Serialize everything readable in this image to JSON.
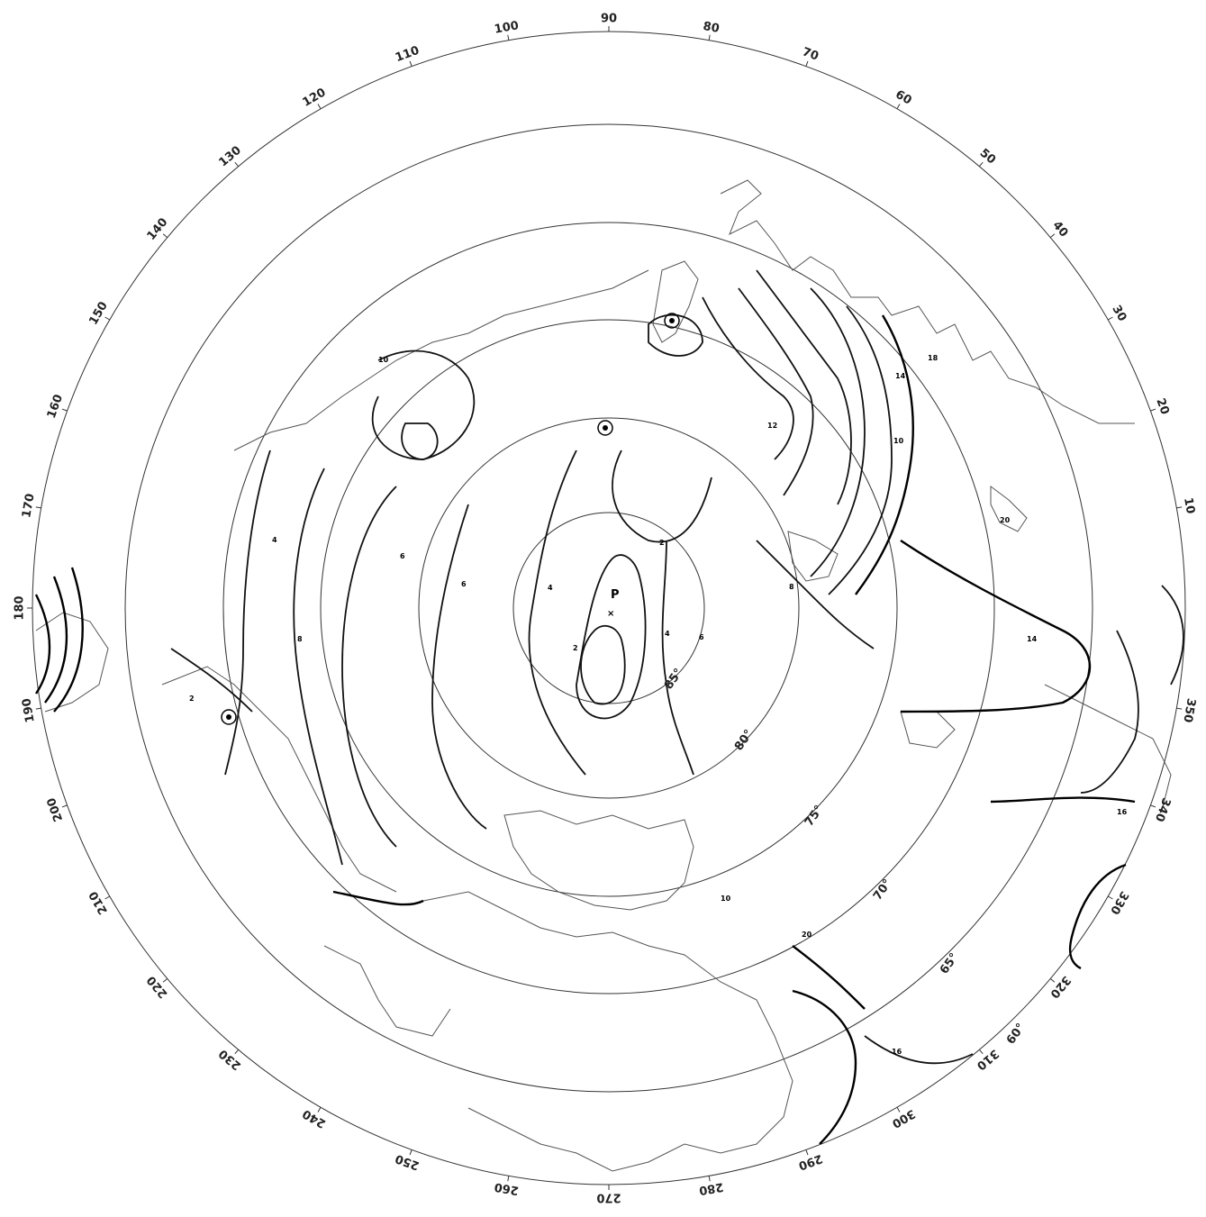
{
  "map": {
    "longitude_labels": [
      "90",
      "100",
      "110",
      "120",
      "130",
      "140",
      "150",
      "160",
      "170",
      "180",
      "190",
      "200",
      "210",
      "220",
      "230",
      "240",
      "250",
      "260",
      "270",
      "280",
      "290",
      "300",
      "310",
      "320",
      "330",
      "340",
      "350",
      "10",
      "20",
      "30",
      "40",
      "50",
      "60",
      "70",
      "80"
    ],
    "latitude_labels": [
      "85°",
      "80°",
      "75°",
      "70°",
      "65°",
      "60°"
    ],
    "pole_label": "P",
    "pole_marker": "×",
    "contour_values": [
      "2",
      "4",
      "6",
      "8",
      "10",
      "12",
      "14",
      "16",
      "18",
      "20"
    ]
  }
}
